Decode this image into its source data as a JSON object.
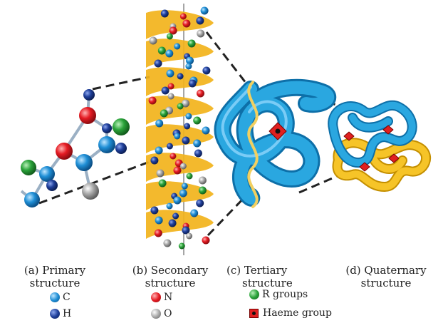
{
  "captions": {
    "primary": [
      "(a) Primary",
      "structure"
    ],
    "secondary": [
      "(b) Secondary",
      "structure"
    ],
    "tertiary": [
      "(c) Tertiary",
      "structure"
    ],
    "quaternary": [
      "(d) Quaternary",
      "structure"
    ]
  },
  "legend": {
    "c": "C",
    "h": "H",
    "n": "N",
    "o": "O",
    "r_groups": "R groups",
    "haeme": "Haeme group"
  },
  "colors": {
    "carbon": "#1f8fd6",
    "hydrogen": "#1f3f9a",
    "nitrogen": "#e51b23",
    "oxygen": "#a9a9a9",
    "r_group": "#2aa33a",
    "haeme": "#e02020",
    "helix_ribbon": "#f2b41c",
    "tube_blue": "#2aa7e0",
    "tube_yellow": "#f6c428"
  }
}
